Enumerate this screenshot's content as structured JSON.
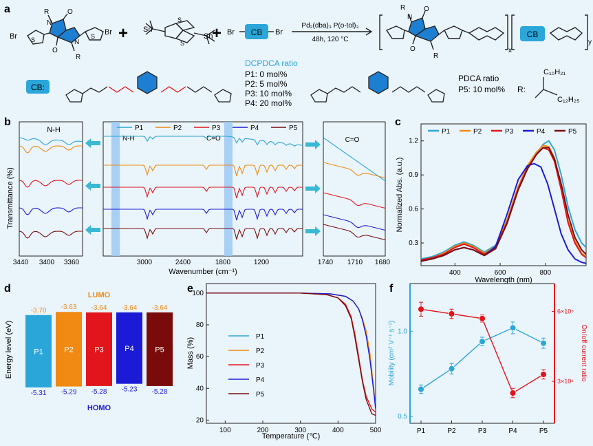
{
  "panels": {
    "a": "a",
    "b": "b",
    "c": "c",
    "d": "d",
    "e": "e",
    "f": "f"
  },
  "scheme": {
    "monomer_labels": {
      "br_left": "Br",
      "br_right": "Br",
      "r_top": "R",
      "r_bottom": "R",
      "o_top": "O",
      "o_bottom": "O",
      "s1": "S",
      "s2": "S",
      "n_top": "N",
      "n_bottom": "N"
    },
    "stannane_labels": {
      "sn1": "Sn",
      "sn2": "Sn",
      "s1": "S",
      "s2": "S"
    },
    "cb_monomer": {
      "br_left": "Br",
      "cb": "CB",
      "br_right": "Br"
    },
    "plus": "+",
    "conditions_top": "Pd₂(dba)₃  P(o-tol)₃",
    "conditions_bottom": "48h, 120 °C",
    "product_labels": {
      "n": "N",
      "r_top": "R",
      "o_top": "O",
      "o_bottom": "O",
      "r_bottom": "R",
      "cb": "CB",
      "x": "x",
      "y": "y"
    },
    "cb_label": "CB:",
    "dcpdca_title": "DCPDCA ratio",
    "dcpdca_lines": [
      "P1:  0 mol%",
      "P2:  5 mol%",
      "P3: 10 mol%",
      "P4: 20 mol%"
    ],
    "pdca_title": "PDCA ratio",
    "pdca_line": "P5: 10 mol%",
    "r_label": "R:",
    "c10": "C₁₀H₂₁",
    "c12": "C₁₂H₂₅",
    "atoms": {
      "h": "H",
      "n": "N",
      "o": "O",
      "s": "S"
    }
  },
  "colors": {
    "P1": "#2aa6d9",
    "P2": "#f08a12",
    "P3": "#e3151c",
    "P4": "#1b1bd6",
    "P5": "#7a0b0b",
    "accent": "#2aa6d9",
    "band": "#9cc8f2",
    "arrow": "#3ab9d2",
    "mobility": "#2aa6d9",
    "onoff": "#e3151c"
  },
  "chart_data": [
    {
      "id": "b",
      "type": "line",
      "ylabel": "Transmittance (%)",
      "main": {
        "xlabel": "Wavenumber (cm⁻¹)",
        "xticks": [
          "3000",
          "2400",
          "1800",
          "1200"
        ],
        "xlim": [
          3600,
          600
        ],
        "band_labels": [
          "N-H",
          "C=O"
        ],
        "legend": [
          "P1",
          "P2",
          "P3",
          "P4",
          "P5"
        ]
      },
      "left_inset": {
        "title": "N-H",
        "xlim": [
          3440,
          3330
        ],
        "xticks": [
          "3440",
          "3400",
          "3360"
        ]
      },
      "right_inset": {
        "title": "C=O",
        "xlim": [
          1740,
          1680
        ],
        "xticks": [
          "1740",
          "1710",
          "1680"
        ]
      },
      "series": [
        "P1",
        "P2",
        "P3",
        "P4",
        "P5"
      ]
    },
    {
      "id": "c",
      "type": "line",
      "xlabel": "Wavelength (nm)",
      "ylabel": "Normalized Abs. (a.u.)",
      "xlim": [
        250,
        980
      ],
      "ylim": [
        0.1,
        1.35
      ],
      "xticks": [
        400,
        600,
        800
      ],
      "yticks": [
        0.3,
        0.6,
        0.9,
        1.2
      ],
      "series": [
        {
          "name": "P1",
          "x": [
            250,
            300,
            350,
            400,
            440,
            480,
            530,
            580,
            630,
            680,
            720,
            760,
            790,
            815,
            840,
            870,
            900,
            930,
            960,
            980
          ],
          "y": [
            0.16,
            0.18,
            0.22,
            0.28,
            0.31,
            0.28,
            0.22,
            0.28,
            0.5,
            0.78,
            0.95,
            1.08,
            1.17,
            1.2,
            1.12,
            0.9,
            0.62,
            0.42,
            0.3,
            0.26
          ]
        },
        {
          "name": "P2",
          "x": [
            250,
            300,
            350,
            400,
            440,
            480,
            530,
            580,
            630,
            680,
            720,
            760,
            790,
            815,
            840,
            870,
            900,
            930,
            960,
            980
          ],
          "y": [
            0.15,
            0.17,
            0.21,
            0.27,
            0.3,
            0.27,
            0.21,
            0.27,
            0.5,
            0.8,
            0.98,
            1.1,
            1.16,
            1.15,
            1.05,
            0.8,
            0.5,
            0.32,
            0.21,
            0.18
          ]
        },
        {
          "name": "P3",
          "x": [
            250,
            300,
            350,
            400,
            440,
            480,
            530,
            580,
            630,
            680,
            720,
            760,
            790,
            815,
            840,
            870,
            900,
            930,
            960,
            980
          ],
          "y": [
            0.15,
            0.17,
            0.2,
            0.26,
            0.29,
            0.26,
            0.2,
            0.26,
            0.48,
            0.78,
            0.96,
            1.08,
            1.14,
            1.12,
            1.02,
            0.77,
            0.48,
            0.3,
            0.2,
            0.17
          ]
        },
        {
          "name": "P4",
          "x": [
            250,
            300,
            350,
            400,
            440,
            480,
            530,
            580,
            630,
            680,
            720,
            750,
            780,
            810,
            840,
            870,
            900,
            930,
            960,
            980
          ],
          "y": [
            0.14,
            0.16,
            0.19,
            0.24,
            0.26,
            0.24,
            0.19,
            0.27,
            0.55,
            0.86,
            0.98,
            1.0,
            0.97,
            0.82,
            0.6,
            0.38,
            0.24,
            0.16,
            0.13,
            0.12
          ]
        },
        {
          "name": "P5",
          "x": [
            250,
            300,
            350,
            400,
            440,
            480,
            530,
            580,
            630,
            680,
            720,
            760,
            790,
            815,
            840,
            870,
            900,
            930,
            960,
            980
          ],
          "y": [
            0.14,
            0.16,
            0.19,
            0.24,
            0.26,
            0.24,
            0.19,
            0.25,
            0.47,
            0.77,
            0.95,
            1.08,
            1.14,
            1.14,
            1.04,
            0.82,
            0.55,
            0.35,
            0.24,
            0.2
          ]
        }
      ],
      "legend": [
        "P1",
        "P2",
        "P3",
        "P4",
        "P5"
      ],
      "legend_position": "top"
    },
    {
      "id": "d",
      "type": "bar",
      "ylabel": "Energy level (eV)",
      "categories": [
        "P1",
        "P2",
        "P3",
        "P4",
        "P5"
      ],
      "lumo": [
        -3.7,
        -3.63,
        -3.64,
        -3.64,
        -3.64
      ],
      "homo": [
        -5.31,
        -5.29,
        -5.28,
        -5.23,
        -5.28
      ],
      "lumo_labels": [
        "-3.70",
        "-3.63",
        "-3.64",
        "-3.64",
        "-3.64"
      ],
      "homo_labels": [
        "-5.31",
        "-5.29",
        "-5.28",
        "-5.23",
        "-5.28"
      ],
      "lumo_title": "LUMO",
      "homo_title": "HOMO"
    },
    {
      "id": "e",
      "type": "line",
      "xlabel": "Temperature (℃)",
      "ylabel": "Mass (%)",
      "xlim": [
        50,
        500
      ],
      "ylim": [
        18,
        106
      ],
      "xticks": [
        100,
        200,
        300,
        400,
        500
      ],
      "yticks": [
        20,
        40,
        60,
        80,
        100
      ],
      "series": [
        {
          "name": "P1",
          "x": [
            50,
            300,
            380,
            420,
            440,
            455,
            465,
            475,
            485,
            495,
            500
          ],
          "y": [
            100,
            100,
            99.5,
            98,
            95,
            90,
            84,
            75,
            60,
            40,
            28
          ]
        },
        {
          "name": "P2",
          "x": [
            50,
            300,
            380,
            420,
            440,
            455,
            465,
            475,
            485,
            495,
            500
          ],
          "y": [
            100,
            100,
            99.5,
            98,
            95,
            90,
            84,
            76,
            62,
            40,
            28
          ]
        },
        {
          "name": "P3",
          "x": [
            50,
            300,
            370,
            400,
            420,
            435,
            445,
            455,
            465,
            475,
            490,
            500
          ],
          "y": [
            100,
            100,
            99,
            97,
            93,
            85,
            74,
            60,
            45,
            35,
            27,
            25
          ]
        },
        {
          "name": "P4",
          "x": [
            50,
            300,
            380,
            420,
            440,
            455,
            465,
            475,
            485,
            495,
            500
          ],
          "y": [
            100,
            100,
            99.5,
            98,
            95,
            90,
            83,
            73,
            58,
            38,
            27
          ]
        },
        {
          "name": "P5",
          "x": [
            50,
            300,
            370,
            400,
            420,
            435,
            445,
            455,
            465,
            475,
            490,
            500
          ],
          "y": [
            100,
            100,
            99,
            97,
            92,
            84,
            72,
            58,
            44,
            33,
            24,
            23
          ]
        }
      ],
      "legend": [
        "P1",
        "P2",
        "P3",
        "P4",
        "P5"
      ],
      "legend_position": "center-left"
    },
    {
      "id": "f",
      "type": "scatter",
      "categories": [
        "P1",
        "P2",
        "P3",
        "P4",
        "P5"
      ],
      "ylabel_left": "Mobility (cm² V⁻¹ s⁻¹)",
      "ylabel_right": "On/off current ratio",
      "left_ylim": [
        0.46,
        1.28
      ],
      "left_yticks": [
        0.5,
        1.0
      ],
      "left_ytick_labels": [
        "0.5",
        "1.0"
      ],
      "right_yticks": [
        "3×10⁶",
        "6×10⁶"
      ],
      "right_ytick_values": [
        3,
        6
      ],
      "right_ylim": [
        1.2,
        7.2
      ],
      "series": [
        {
          "name": "Mobility",
          "values": [
            0.66,
            0.78,
            0.94,
            1.02,
            0.93
          ],
          "errors": [
            0.025,
            0.03,
            0.025,
            0.035,
            0.03
          ]
        },
        {
          "name": "On/off current ratio",
          "values": [
            6.1,
            5.9,
            5.7,
            2.5,
            3.3
          ],
          "errors": [
            0.3,
            0.2,
            0.15,
            0.2,
            0.2
          ]
        }
      ]
    }
  ]
}
